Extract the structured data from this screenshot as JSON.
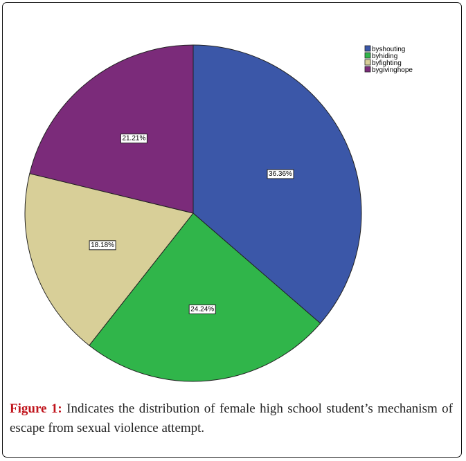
{
  "chart_data": {
    "type": "pie",
    "categories": [
      "byshouting",
      "byhiding",
      "byfighting",
      "bygivinghope"
    ],
    "values": [
      36.36,
      24.24,
      18.18,
      21.21
    ],
    "labels": [
      "36.36%",
      "24.24%",
      "18.18%",
      "21.21%"
    ],
    "colors": [
      "#3b57a8",
      "#30b54a",
      "#d8cf98",
      "#7b2b7a"
    ],
    "start_angle": "12 o'clock",
    "direction": "clockwise",
    "legend_position": "top-right"
  },
  "caption": {
    "label": "Figure 1:",
    "text": " Indicates the distribution of female high school student’s mechanism of escape from sexual violence attempt."
  }
}
